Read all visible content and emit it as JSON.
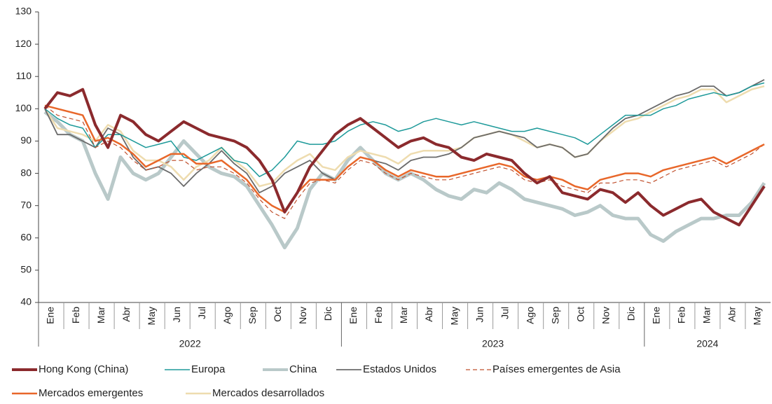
{
  "chart_data": {
    "type": "line",
    "categories": [
      "Ene",
      null,
      "Feb",
      null,
      "Mar",
      null,
      "Abr",
      null,
      "May",
      null,
      "Jun",
      null,
      "Jul",
      null,
      "Ago",
      null,
      "Sep",
      null,
      "Oct",
      null,
      "Nov",
      null,
      "Dic",
      null,
      "Ene",
      null,
      "Feb",
      null,
      "Mar",
      null,
      "Abr",
      null,
      "May",
      null,
      "Jun",
      null,
      "Jul",
      null,
      "Ago",
      null,
      "Sep",
      null,
      "Oct",
      null,
      "Nov",
      null,
      "Dic",
      null,
      "Ene",
      null,
      "Feb",
      null,
      "Mar",
      null,
      "Abr",
      null,
      "May",
      null
    ],
    "years": [
      "2022",
      "2023",
      "2024"
    ],
    "ylim": [
      40,
      130
    ],
    "yticks": [
      40,
      50,
      60,
      70,
      80,
      90,
      100,
      110,
      120,
      130
    ],
    "grid": false,
    "series": [
      {
        "name": "Hong Kong (China)",
        "color": "#8b2a2d",
        "line_width": 4,
        "dashed": false,
        "values": [
          100,
          105,
          104,
          106,
          95,
          88,
          98,
          96,
          92,
          90,
          93,
          96,
          94,
          92,
          91,
          90,
          88,
          84,
          78,
          68,
          74,
          82,
          87,
          92,
          95,
          97,
          94,
          91,
          88,
          90,
          91,
          89,
          88,
          85,
          84,
          86,
          85,
          84,
          80,
          77,
          79,
          74,
          73,
          72,
          75,
          74,
          71,
          74,
          70,
          67,
          69,
          71,
          72,
          68,
          66,
          64,
          70,
          76
        ]
      },
      {
        "name": "Europa",
        "color": "#1e9a9a",
        "line_width": 1.5,
        "dashed": false,
        "values": [
          100,
          97,
          95,
          94,
          88,
          92,
          92,
          90,
          88,
          89,
          90,
          85,
          84,
          86,
          88,
          84,
          83,
          79,
          81,
          85,
          90,
          89,
          89,
          90,
          93,
          95,
          96,
          95,
          93,
          94,
          96,
          97,
          96,
          95,
          96,
          95,
          94,
          93,
          93,
          94,
          93,
          92,
          91,
          89,
          92,
          95,
          98,
          98,
          98,
          100,
          101,
          103,
          104,
          105,
          104,
          105,
          107,
          108
        ]
      },
      {
        "name": "China",
        "color": "#b9c9c9",
        "line_width": 5,
        "dashed": false,
        "values": [
          99,
          96,
          92,
          90,
          80,
          72,
          85,
          80,
          78,
          80,
          85,
          90,
          86,
          82,
          80,
          79,
          76,
          70,
          64,
          57,
          63,
          75,
          80,
          78,
          84,
          88,
          84,
          80,
          78,
          80,
          78,
          75,
          73,
          72,
          75,
          74,
          77,
          75,
          72,
          71,
          70,
          69,
          67,
          68,
          70,
          67,
          66,
          66,
          61,
          59,
          62,
          64,
          66,
          66,
          67,
          67,
          71,
          77
        ]
      },
      {
        "name": "Estados Unidos",
        "color": "#6b6b6b",
        "line_width": 1.8,
        "dashed": false,
        "values": [
          100,
          92,
          92,
          90,
          88,
          94,
          92,
          85,
          81,
          82,
          80,
          76,
          80,
          83,
          87,
          83,
          80,
          74,
          76,
          80,
          82,
          84,
          80,
          78,
          82,
          85,
          84,
          83,
          81,
          84,
          85,
          85,
          86,
          88,
          91,
          92,
          93,
          92,
          91,
          88,
          89,
          88,
          85,
          86,
          90,
          94,
          97,
          98,
          100,
          102,
          104,
          105,
          107,
          107,
          104,
          105,
          107,
          109
        ]
      },
      {
        "name": "Países emergentes de Asia",
        "color": "#c0502d",
        "line_width": 1.2,
        "dashed": true,
        "values": [
          101,
          98,
          97,
          96,
          88,
          90,
          88,
          84,
          81,
          82,
          84,
          84,
          81,
          82,
          82,
          80,
          77,
          72,
          68,
          66,
          72,
          77,
          78,
          77,
          81,
          84,
          83,
          80,
          78,
          80,
          79,
          78,
          78,
          79,
          80,
          81,
          82,
          81,
          78,
          77,
          78,
          76,
          75,
          74,
          77,
          77,
          78,
          78,
          77,
          79,
          81,
          82,
          83,
          84,
          82,
          84,
          86,
          89
        ]
      },
      {
        "name": "Mercados emergentes",
        "color": "#e8672a",
        "line_width": 2.5,
        "dashed": false,
        "values": [
          101,
          100,
          99,
          98,
          90,
          91,
          89,
          86,
          82,
          84,
          86,
          86,
          83,
          83,
          84,
          81,
          78,
          73,
          70,
          68,
          74,
          78,
          78,
          78,
          82,
          85,
          84,
          81,
          79,
          81,
          80,
          79,
          79,
          80,
          81,
          82,
          83,
          82,
          79,
          78,
          79,
          78,
          76,
          75,
          78,
          79,
          80,
          80,
          79,
          81,
          82,
          83,
          84,
          85,
          83,
          85,
          87,
          89
        ]
      },
      {
        "name": "Mercados desarrollados",
        "color": "#eedcaf",
        "line_width": 2.5,
        "dashed": false,
        "values": [
          100,
          94,
          93,
          92,
          90,
          95,
          93,
          87,
          84,
          84,
          82,
          78,
          82,
          84,
          88,
          84,
          81,
          76,
          77,
          81,
          84,
          86,
          82,
          81,
          85,
          87,
          86,
          85,
          83,
          86,
          87,
          87,
          87,
          88,
          91,
          92,
          93,
          92,
          90,
          88,
          89,
          88,
          85,
          86,
          90,
          93,
          96,
          97,
          99,
          101,
          103,
          104,
          106,
          106,
          102,
          104,
          106,
          107
        ]
      }
    ]
  }
}
